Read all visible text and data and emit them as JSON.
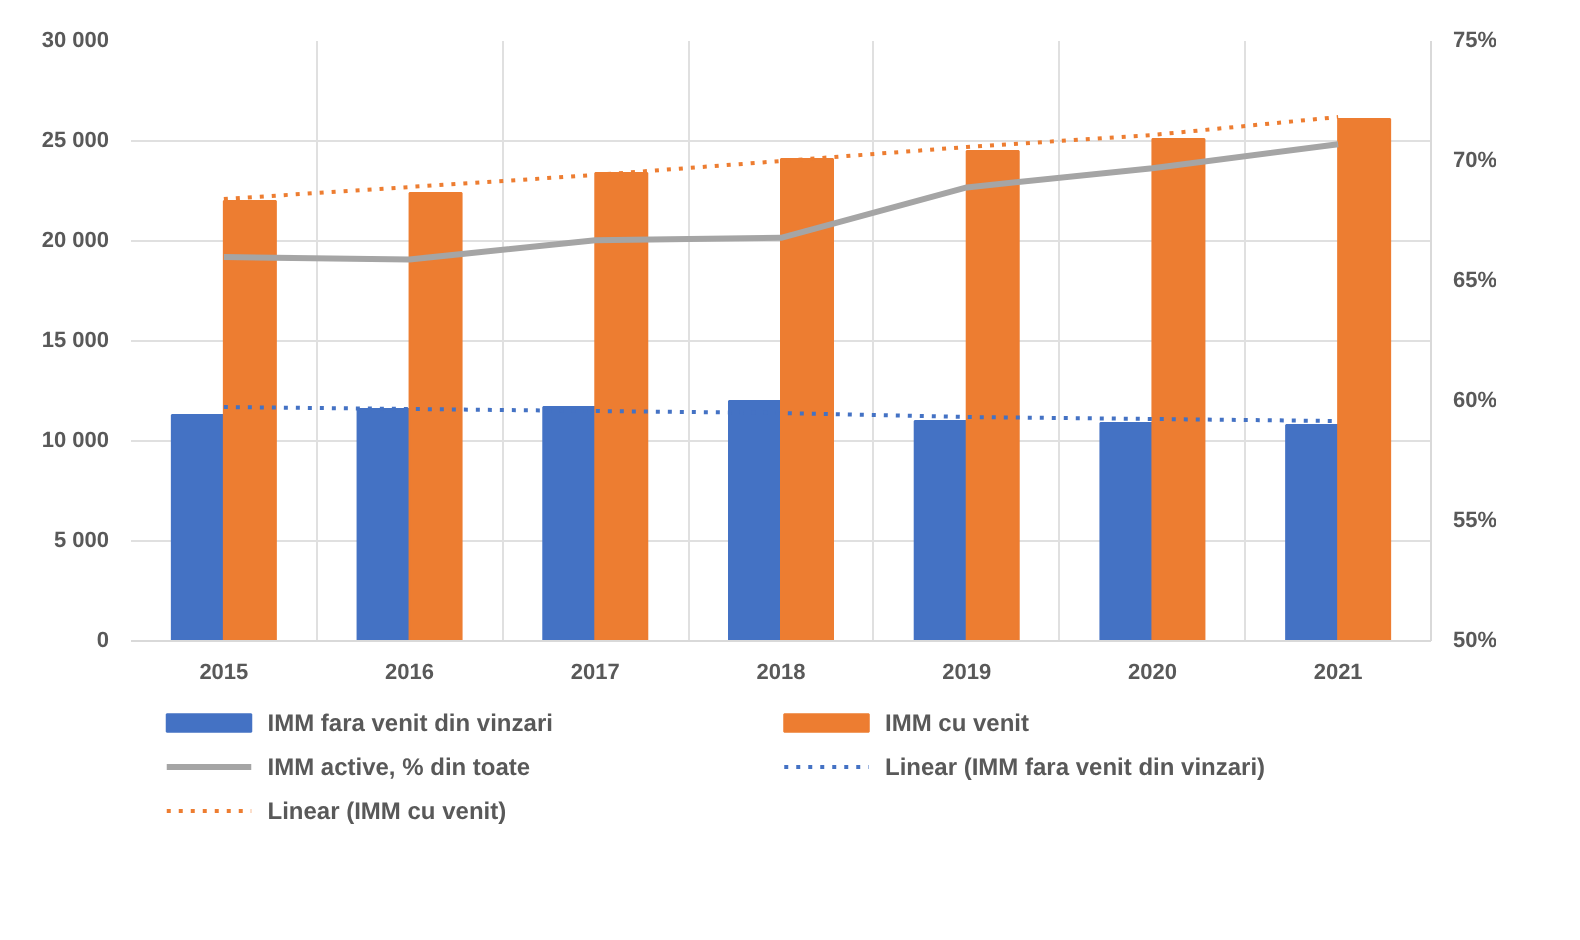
{
  "chart_data": {
    "type": "bar",
    "categories": [
      "2015",
      "2016",
      "2017",
      "2018",
      "2019",
      "2020",
      "2021"
    ],
    "series": [
      {
        "name": "IMM fara venit din vinzari",
        "color": "#4472c4",
        "values": [
          11300,
          11600,
          11700,
          12000,
          11000,
          10900,
          10800
        ]
      },
      {
        "name": "IMM cu venit",
        "color": "#ed7d31",
        "values": [
          22000,
          22400,
          23400,
          24100,
          24500,
          25100,
          26100
        ]
      },
      {
        "name": "IMM active, % din toate",
        "color": "#a5a5a5",
        "type": "line",
        "axis": "y2",
        "line_style": "solid",
        "values": [
          66.0,
          65.9,
          66.7,
          66.8,
          68.9,
          69.7,
          70.7
        ]
      },
      {
        "name": "Linear (IMM fara venit din vinzari)",
        "color": "#4472c4",
        "type": "line",
        "line_style": "dotted",
        "values": [
          11700,
          11600,
          11500,
          11400,
          11200,
          11100,
          11000
        ]
      },
      {
        "name": "Linear (IMM cu venit)",
        "color": "#ed7d31",
        "type": "line",
        "line_style": "dotted",
        "values": [
          22100,
          22700,
          23300,
          24000,
          24700,
          25300,
          26200
        ]
      }
    ],
    "ylim": [
      0,
      30000
    ],
    "yticks": [
      0,
      {
        "value": 5000,
        "label": "5 000"
      },
      {
        "value": 10000,
        "label": "10 000"
      },
      {
        "value": 15000,
        "label": "15 000"
      },
      {
        "value": 20000,
        "label": "20 000"
      },
      {
        "value": 25000,
        "label": "25 000"
      },
      {
        "value": 30000,
        "label": "30 000"
      }
    ],
    "y2lim": [
      50,
      75
    ],
    "y2ticks": [
      {
        "value": 50,
        "label": "50%"
      },
      {
        "value": 55,
        "label": "55%"
      },
      {
        "value": 60,
        "label": "60%"
      },
      {
        "value": 65,
        "label": "65%"
      },
      {
        "value": 70,
        "label": "70%"
      },
      {
        "value": 75,
        "label": "75%"
      }
    ],
    "grid": true,
    "legend": "bottom"
  }
}
